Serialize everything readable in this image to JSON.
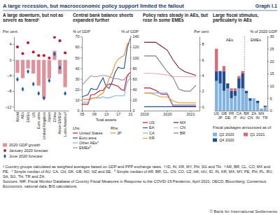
{
  "title": "A large recession, but macroeconomic policy support limited the fallout",
  "graph_label": "Graph I.1",
  "footnotes": [
    "¹ Country groups calculated as weighted averages based on GDP and PPP exchange rates.",
    "² ID, IN, KR, MY, PH, SG and TH.",
    "³ AR, BR, CL, CO, MX and PE.",
    "⁴ Simple median of AU, CA, CH, DK, GB, NO, NZ and SE.",
    "⁵ Simple median of AR, BR, CL, CN, CO, CZ, HK, HU, ID, IN, KR, MX, MY, PE, PH, PL, RU, SA, SG, TH, TR and ZA."
  ],
  "sources": "Sources: IMF, Fiscal Monitor Database of Country Fiscal Measures in Response to the COVID-19 Pandemic, April 2021; OECD; Bloomberg; Consensus Economics; national data; BIS calculations.",
  "copyright": "© Bank for International Settlements",
  "chart_data": [
    {
      "type": "bar",
      "title": "A large downturn, but not as severe as feared¹",
      "y_label": "Per cent",
      "categories": [
        "World",
        "AEs",
        "EMEs",
        "US",
        "Euro area",
        "United Kingdom",
        "Japan",
        "China",
        "Asian EMEs²",
        "Latin America³"
      ],
      "series": [
        {
          "name": "2020 GDP growth",
          "type": "bar",
          "color": "#e0929c",
          "values": [
            -3.3,
            -4.7,
            -2.2,
            -3.5,
            -6.6,
            -9.9,
            -4.8,
            2.3,
            -3.6,
            -7
          ]
        },
        {
          "name": "January 2020 forecast",
          "type": "scatter",
          "marker": "circle",
          "color": "#c8102e",
          "values": [
            3.3,
            1.6,
            4.4,
            2.0,
            1.1,
            1.1,
            0.5,
            5.8,
            4.9,
            1.8
          ]
        },
        {
          "name": "June 2020 forecast",
          "type": "scatter",
          "marker": "diamond",
          "color": "#1f5fa8",
          "values": [
            -5.0,
            -7.5,
            -3.0,
            -6.2,
            -8.6,
            -9.8,
            -5.3,
            1.5,
            -2.0,
            -8.6
          ]
        }
      ],
      "ylim": [
        -13,
        6
      ],
      "yticks": [
        4,
        0,
        {
          "value": -4,
          "label": "–4"
        },
        {
          "value": -8,
          "label": "–8"
        },
        {
          "value": -12,
          "label": "–12"
        }
      ],
      "legend": "bottom"
    },
    {
      "type": "line",
      "title": "Central bank balance sheets expanded further",
      "y_label": "% of GDP",
      "y2_label": "% of GDP",
      "x_label": "Total assets",
      "lhs_label": "Lhs:",
      "rhs_label": "Rhs:",
      "x": [
        2005,
        2006,
        2007,
        2008,
        2009,
        2010,
        2011,
        2012,
        2013,
        2014,
        2015,
        2016,
        2017,
        2018,
        2019,
        2020,
        2021
      ],
      "series": [
        {
          "name": "United States",
          "color": "#c8102e",
          "values": [
            6,
            6,
            6,
            15,
            15,
            17,
            19,
            19,
            23,
            25,
            25,
            24,
            23,
            20,
            19,
            33,
            36
          ]
        },
        {
          "name": "Euro area",
          "color": "#1f4e99",
          "values": [
            13,
            14,
            15,
            21,
            20,
            20,
            26,
            31,
            23,
            21,
            27,
            36,
            41,
            40,
            40,
            59,
            68
          ]
        },
        {
          "name": "Other AEs⁴",
          "color": "#7fb2e5",
          "values": [
            8,
            8,
            8,
            11,
            12,
            12,
            12,
            13,
            12,
            12,
            13,
            14,
            14,
            14,
            14,
            27,
            31
          ]
        },
        {
          "name": "EMEs⁵",
          "color": "#a58bb8",
          "values": [
            24,
            27,
            30,
            33,
            32,
            32,
            33,
            33,
            33,
            32,
            31,
            30,
            30,
            29,
            29,
            33,
            32
          ]
        },
        {
          "name": "JP",
          "color": "#f28c28",
          "axis": "y2",
          "values": [
            22,
            21,
            21,
            23,
            24,
            25,
            30,
            33,
            45,
            60,
            71,
            88,
            97,
            101,
            104,
            125,
            133
          ]
        }
      ],
      "xlim": [
        2005,
        2021
      ],
      "xticks": [
        {
          "value": 2005,
          "label": "05"
        },
        {
          "value": 2009,
          "label": "09"
        },
        {
          "value": 2013,
          "label": "13"
        },
        {
          "value": 2017,
          "label": "17"
        },
        {
          "value": 2021,
          "label": "21"
        }
      ],
      "ylim": [
        0,
        70
      ],
      "yticks": [
        0,
        10,
        20,
        30,
        40,
        50,
        60,
        70
      ],
      "y2lim": [
        0,
        140
      ],
      "y2ticks": [
        0,
        20,
        40,
        60,
        80,
        100,
        120,
        140
      ],
      "legend": "bottom"
    },
    {
      "type": "line",
      "title": "Policy rates steady in AEs, but rose in some EMEs",
      "y_label": "Per cent",
      "x": [
        2019,
        2019.25,
        2019.5,
        2019.75,
        2020,
        2020.25,
        2020.5,
        2020.75,
        2021,
        2021.25
      ],
      "series": [
        {
          "name": "US",
          "color": "#c8102e",
          "values": [
            2.4,
            2.4,
            2.1,
            1.6,
            1.6,
            0.1,
            0.1,
            0.1,
            0.1,
            0.1
          ]
        },
        {
          "name": "EA",
          "color": "#1f4e99",
          "values": [
            0,
            0,
            0,
            0,
            0,
            0,
            0,
            0,
            0,
            0
          ]
        },
        {
          "name": "CA",
          "color": "#7fb2e5",
          "values": [
            1.75,
            1.75,
            1.75,
            1.75,
            1.75,
            0.25,
            0.25,
            0.25,
            0.25,
            0.25
          ]
        },
        {
          "name": "KR",
          "color": "#e9a23b",
          "values": [
            1.75,
            1.75,
            1.5,
            1.25,
            1.25,
            0.75,
            0.5,
            0.5,
            0.5,
            0.5
          ]
        },
        {
          "name": "MX",
          "color": "#7a1f3d",
          "values": [
            8.25,
            8.25,
            8.25,
            7.75,
            7.25,
            6,
            5,
            4.5,
            4.25,
            4
          ]
        },
        {
          "name": "CN",
          "color": "#f4a6b0",
          "values": [
            4.3,
            4.3,
            4.25,
            4.15,
            4.05,
            3.85,
            3.85,
            3.85,
            3.85,
            3.85
          ]
        },
        {
          "name": "BR",
          "color": "#808080",
          "values": [
            6.5,
            6.5,
            6.5,
            5.5,
            4.5,
            3.75,
            2.25,
            2,
            2,
            2.75
          ]
        }
      ],
      "xlim": [
        2019,
        2021.4
      ],
      "xticks": [
        2019,
        2020,
        2021
      ],
      "ylim": [
        -0.5,
        9
      ],
      "yticks": [
        0,
        2,
        4,
        6,
        8
      ],
      "legend": "bottom"
    },
    {
      "type": "bar",
      "stacked": true,
      "title": "Large fiscal stimulus, particularly in AEs",
      "y_label": "% of 2020 GDP",
      "legend_title": "Fiscal packages announced as of:",
      "categories": [
        "US",
        "JP",
        "GB",
        "DE",
        "FR",
        "IT",
        "CA",
        "AU",
        "BR",
        "CN",
        "ZA",
        "IN",
        "MX",
        "TR"
      ],
      "groups": [
        {
          "label": "AEs",
          "count": 8
        },
        {
          "label": "EMEs",
          "count": 6
        }
      ],
      "series": [
        {
          "name": "Q2 2020",
          "color": "#7fb2e5",
          "values": [
            12,
            11,
            8,
            9,
            5,
            6,
            9,
            9,
            7,
            4,
            5,
            3,
            0.5,
            1.5
          ]
        },
        {
          "name": "Q4 2020",
          "color": "#1f4e99",
          "values": [
            4,
            5,
            8,
            2,
            3,
            2,
            4,
            6,
            1,
            1,
            0,
            1,
            0.2,
            0.5
          ]
        },
        {
          "name": "Q1 2021",
          "color": "#e06670",
          "values": [
            9,
            0,
            2,
            0,
            1,
            1,
            1,
            1,
            0,
            0,
            0,
            0,
            0,
            0
          ]
        }
      ],
      "ylim": [
        0,
        30
      ],
      "yticks": [
        0,
        5,
        10,
        15,
        20,
        25,
        30
      ],
      "legend": "bottom"
    }
  ]
}
